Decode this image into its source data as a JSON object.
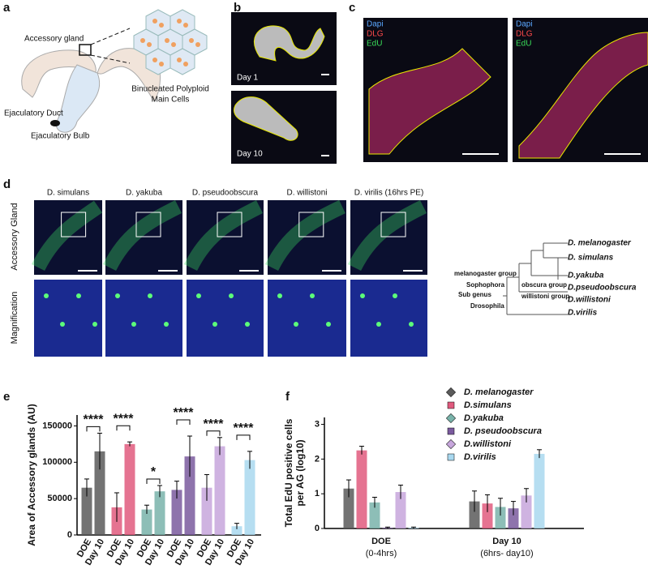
{
  "panel_labels": [
    "a",
    "b",
    "c",
    "d",
    "e",
    "f"
  ],
  "panel_a": {
    "accessory_gland": "Accessory gland",
    "cells": [
      "Binucleated Polyploid",
      "Main Cells"
    ],
    "duct": "Ejaculatory Duct",
    "bulb": "Ejaculatory Bulb"
  },
  "panel_b": {
    "images": [
      "Day 1",
      "Day 10"
    ]
  },
  "panel_c": {
    "stain_legend": [
      "Dapi",
      "DLG",
      "EdU"
    ]
  },
  "panel_d": {
    "species": [
      "D. simulans",
      "D. yakuba",
      "D. pseudoobscura",
      "D. willistoni",
      "D. virilis (16hrs PE)"
    ],
    "rows": [
      "Accessory Gland",
      "Magnification"
    ],
    "tree": {
      "species": [
        "D. melanogaster",
        "D. simulans",
        "D.yakuba",
        "D.pseudoobscura",
        "D.willistoni",
        "D.virilis"
      ],
      "groups": [
        "melanogaster group",
        "obscura group",
        "willistoni group",
        "Sophophora",
        "Sub genus",
        "Drosophila"
      ]
    }
  },
  "chart_data": [
    {
      "type": "bar",
      "ylabel": "Area of Accessory glands (AU)",
      "categories": [
        "DOE",
        "Day 10"
      ],
      "series": [
        {
          "color": "#5b5b5b",
          "values": [
            65000,
            115000
          ],
          "errors": [
            12000,
            25000
          ]
        },
        {
          "color": "#e05a7e",
          "values": [
            38000,
            125000
          ],
          "errors": [
            20000,
            3000
          ]
        },
        {
          "color": "#79b3aa",
          "values": [
            35000,
            60000
          ],
          "errors": [
            6000,
            8000
          ]
        },
        {
          "color": "#7a5a9e",
          "values": [
            62000,
            108000
          ],
          "errors": [
            12000,
            28000
          ]
        },
        {
          "color": "#c7a6dc",
          "values": [
            65000,
            122000
          ],
          "errors": [
            18000,
            12000
          ]
        },
        {
          "color": "#a9d8ef",
          "values": [
            12000,
            103000
          ],
          "errors": [
            4000,
            12000
          ]
        }
      ],
      "annotations": [
        "****",
        "****",
        "*",
        "****",
        "****",
        "****"
      ],
      "ylim": [
        0,
        165000
      ],
      "yticks": [
        0,
        50000,
        100000,
        150000
      ]
    },
    {
      "type": "bar",
      "ylabel": [
        "Total EdU positive cells",
        "per AG (log10)"
      ],
      "categories": [
        "DOE",
        "Day 10"
      ],
      "category_notes": [
        "(0-4hrs)",
        "(6hrs- day10)"
      ],
      "series": [
        {
          "name": "D. melanogaster",
          "color": "#5b5b5b",
          "values": [
            1.15,
            0.78
          ],
          "errors": [
            0.25,
            0.3
          ]
        },
        {
          "name": "D.simulans",
          "color": "#e05a7e",
          "values": [
            2.25,
            0.72
          ],
          "errors": [
            0.12,
            0.25
          ]
        },
        {
          "name": "D.yakuba",
          "color": "#79b3aa",
          "values": [
            0.75,
            0.62
          ],
          "errors": [
            0.15,
            0.25
          ]
        },
        {
          "name": "D. pseudoobscura",
          "color": "#7a5a9e",
          "values": [
            0.02,
            0.58
          ],
          "errors": [
            0.02,
            0.2
          ]
        },
        {
          "name": "D.willistoni",
          "color": "#c7a6dc",
          "values": [
            1.05,
            0.95
          ],
          "errors": [
            0.2,
            0.2
          ]
        },
        {
          "name": "D.virilis",
          "color": "#a9d8ef",
          "values": [
            0.02,
            2.15
          ],
          "errors": [
            0.02,
            0.12
          ]
        }
      ],
      "ylim": [
        0,
        3.2
      ],
      "yticks": [
        0,
        1,
        2,
        3
      ],
      "legend": "upper right"
    }
  ]
}
